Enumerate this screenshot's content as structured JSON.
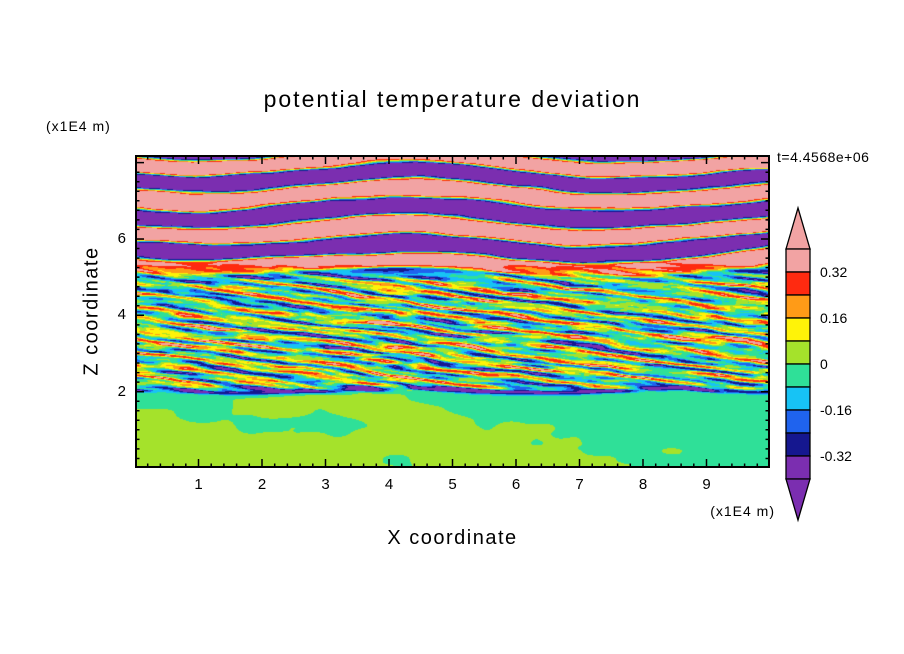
{
  "chart_data": {
    "type": "heatmap",
    "title": "potential temperature deviation",
    "xlabel": "X coordinate",
    "ylabel": "Z coordinate",
    "x_unit": "(x1E4 m)",
    "y_unit": "(x1E4 m)",
    "time_annotation": "t=4.4568e+06",
    "x_ticks": [
      1,
      2,
      3,
      4,
      5,
      6,
      7,
      8,
      9
    ],
    "y_ticks": [
      2,
      4,
      6
    ],
    "xlim": [
      0,
      10
    ],
    "ylim": [
      0,
      8.2
    ],
    "grid": false,
    "legend_position": "right-colorbar",
    "colorbar_tick_labels": [
      "0.32",
      "0.16",
      "0",
      "-0.16",
      "-0.32"
    ],
    "colorbar_tick_values": [
      0.32,
      0.16,
      0,
      -0.16,
      -0.32
    ],
    "contour_interval": 0.08,
    "value_range_displayed": [
      -0.4,
      0.4
    ],
    "thresholds": [
      -0.32,
      -0.24,
      -0.16,
      -0.08,
      0,
      0.08,
      0.16,
      0.24,
      0.32
    ],
    "colors_low_to_high": [
      "#7B2EB0",
      "#15178F",
      "#1F63EE",
      "#17C3F5",
      "#2FE098",
      "#A5E22B",
      "#FFF308",
      "#FF9B17",
      "#FF2A10",
      "#F2A3A3"
    ],
    "color_names_low_to_high": [
      "purple",
      "navy",
      "blue",
      "cyan",
      "spring-green",
      "yellow-green",
      "yellow",
      "orange",
      "red",
      "pink"
    ],
    "structure": [
      {
        "z_range": [
          0,
          2
        ],
        "description": "weak deviations near zero: smooth green patches (mint and yellow-green)"
      },
      {
        "z_range": [
          2,
          2.1
        ],
        "description": "sharp dark navy interface line across the domain"
      },
      {
        "z_range": [
          2,
          4.9
        ],
        "description": "fine-scale horizontally elongated turbulent streaks spanning red/orange/yellow/green/cyan/blue/navy"
      },
      {
        "z_range": [
          4.9,
          8.2
        ],
        "description": "large-amplitude wavy horizontal bands alternating pink (high) and purple (low) with thin rainbow fringes"
      }
    ],
    "field_model": {
      "seed": 3.17,
      "interface_z": 2.02,
      "interface_strength": 0.34,
      "interface_width": 0.067,
      "bottom_mean": -0.004,
      "bottom_amp": 0.075,
      "mid_amps": [
        0.17,
        0.13,
        0.2
      ],
      "band_freq": 1.15,
      "band_amp": 0.46,
      "band_sharpness": 2.8,
      "fringe_amp": 0.1,
      "blend": {
        "bot": [
          1.92,
          2.1
        ],
        "top": [
          4.7,
          5.6
        ]
      }
    }
  },
  "frame": {
    "x_minor_step": 0.2,
    "y_minor_step": 0.25,
    "major_tick_len": 9,
    "minor_tick_len": 4.5
  }
}
